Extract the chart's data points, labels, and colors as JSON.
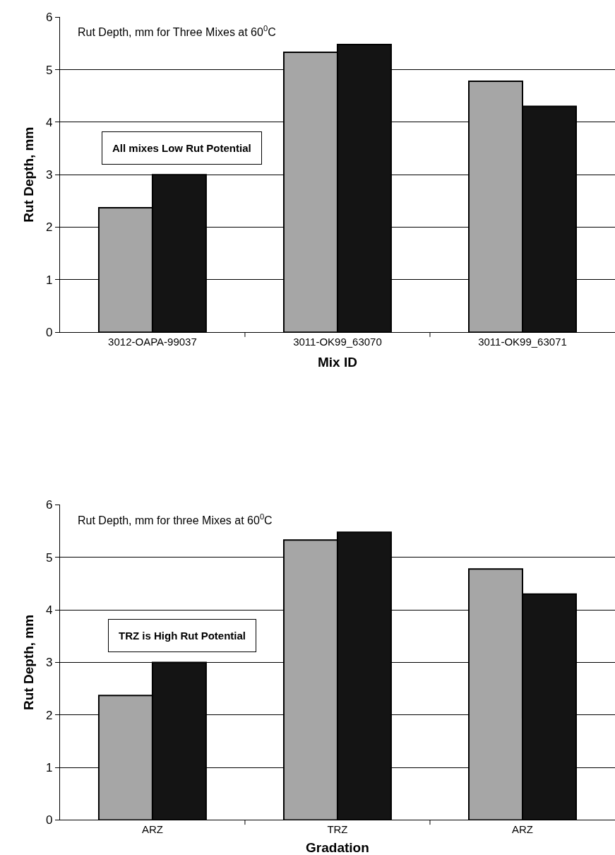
{
  "chart_data": [
    {
      "type": "bar",
      "title": "Rut Depth, mm for Three Mixes at 60$^{0}$C",
      "xlabel": "Mix ID",
      "ylabel": "Rut Depth, mm",
      "categories": [
        "3012-OAPA-99037",
        "3011-OK99_63070",
        "3011-OK99_63071"
      ],
      "series": [
        {
          "color": "#a6a6a6",
          "values": [
            2.37,
            5.33,
            4.78
          ]
        },
        {
          "color": "#141414",
          "values": [
            3.0,
            5.48,
            4.3
          ]
        }
      ],
      "ylim": [
        0,
        6
      ],
      "yticks": [
        0,
        1,
        2,
        3,
        4,
        5,
        6
      ],
      "grid": "y",
      "annotations": [
        "All mixes Low Rut Potential"
      ]
    },
    {
      "type": "bar",
      "title": "Rut Depth, mm for three Mixes at 60$^{0}$C",
      "xlabel": "Gradation",
      "ylabel": "Rut Depth, mm",
      "categories": [
        "ARZ",
        "TRZ",
        "ARZ"
      ],
      "series": [
        {
          "color": "#a6a6a6",
          "values": [
            2.37,
            5.33,
            4.78
          ]
        },
        {
          "color": "#141414",
          "values": [
            3.0,
            5.48,
            4.3
          ]
        }
      ],
      "ylim": [
        0,
        6
      ],
      "yticks": [
        0,
        1,
        2,
        3,
        4,
        5,
        6
      ],
      "grid": "y",
      "annotations": [
        "TRZ is High Rut Potential"
      ]
    }
  ]
}
